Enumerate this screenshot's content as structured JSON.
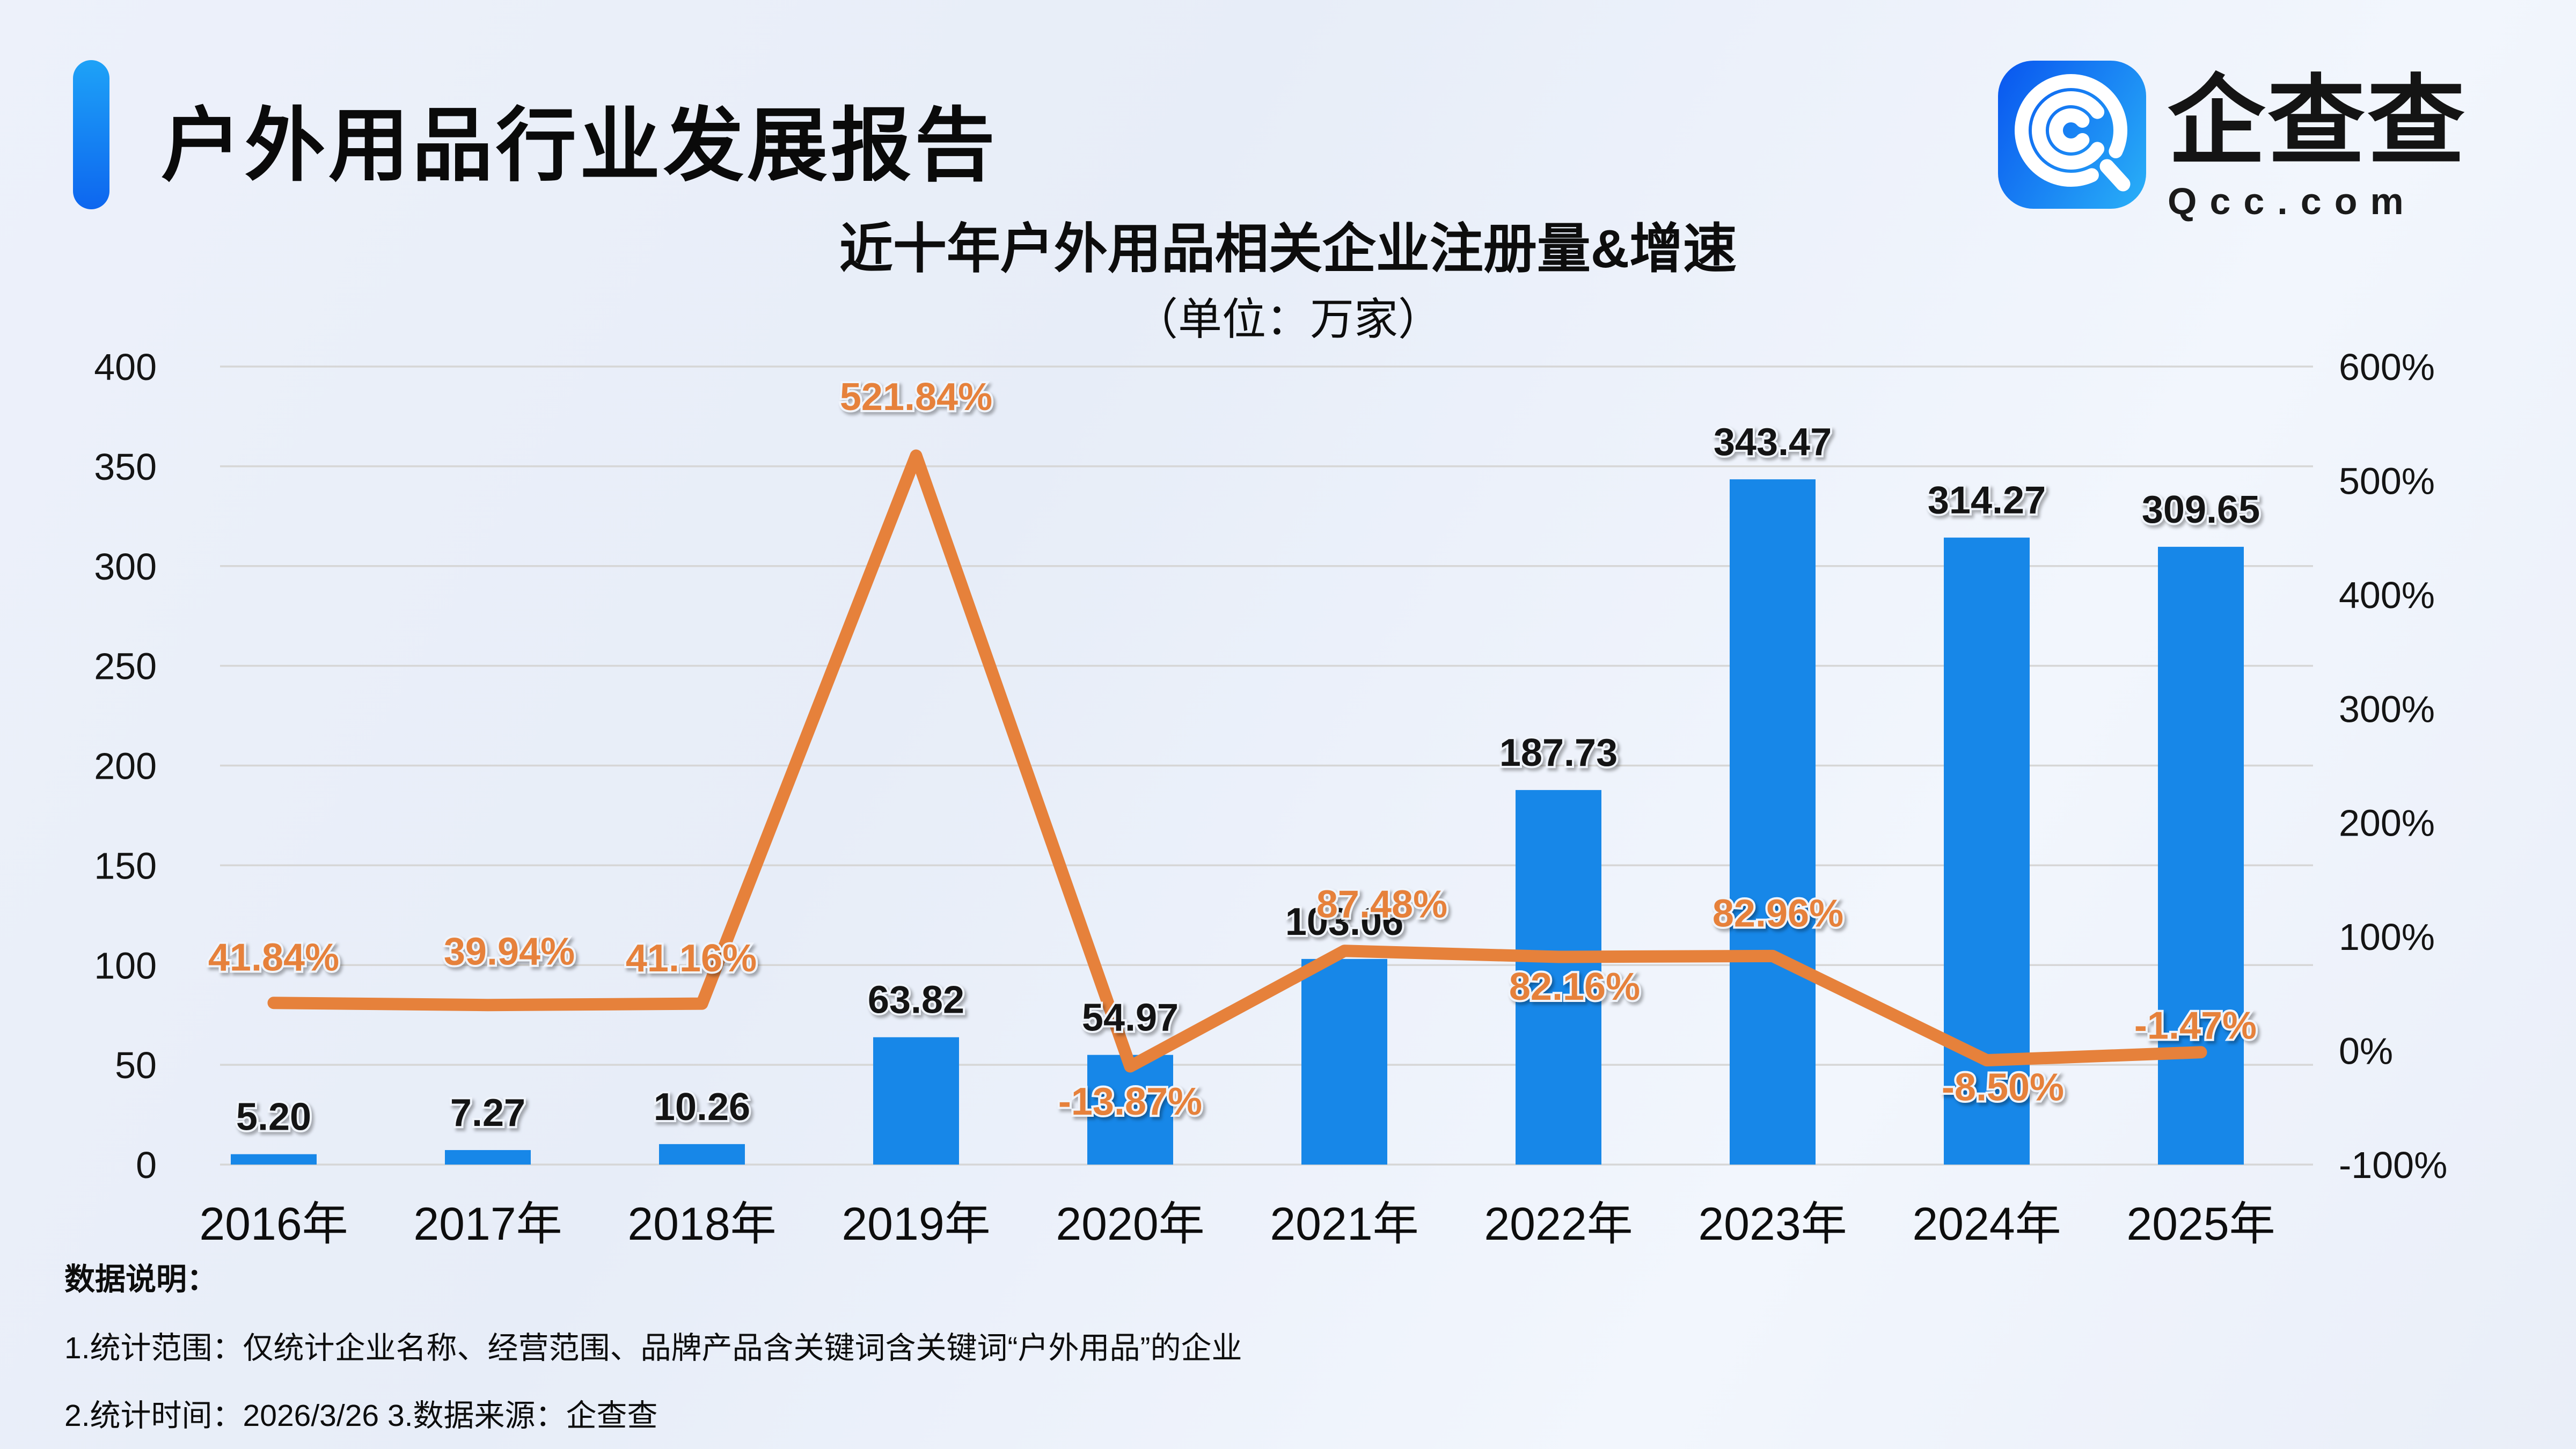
{
  "header": {
    "title": "户外用品行业发展报告",
    "accent_color": "#0d66ef",
    "logo": {
      "name": "企查查",
      "domain": "Qcc.com",
      "icon": "qcc-spiral-magnifier-icon",
      "icon_gradient_start": "#0b5cf0",
      "icon_gradient_end": "#27aaf7"
    }
  },
  "chart_data": {
    "type": "bar+line",
    "title": "近十年户外用品相关企业注册量&增速",
    "unit_label": "（单位：万家）",
    "grid": true,
    "legend_position": "none",
    "categories": [
      "2016年",
      "2017年",
      "2018年",
      "2019年",
      "2020年",
      "2021年",
      "2022年",
      "2023年",
      "2024年",
      "2025年"
    ],
    "series": [
      {
        "name": "注册量",
        "type": "bar",
        "axis": "left",
        "color": "#1787e8",
        "values": [
          5.2,
          7.27,
          10.26,
          63.82,
          54.97,
          103.06,
          187.73,
          343.47,
          314.27,
          309.65
        ],
        "labels": [
          "5.20",
          "7.27",
          "10.26",
          "63.82",
          "54.97",
          "103.06",
          "187.73",
          "343.47",
          "314.27",
          "309.65"
        ]
      },
      {
        "name": "增速",
        "type": "line",
        "axis": "right",
        "color": "#e6813b",
        "values": [
          41.84,
          39.94,
          41.16,
          521.84,
          -13.87,
          87.48,
          82.16,
          82.96,
          -8.5,
          -1.47
        ],
        "labels": [
          "41.84%",
          "39.94%",
          "41.16%",
          "521.84%",
          "-13.87%",
          "87.48%",
          "82.16%",
          "82.96%",
          "-8.50%",
          "-1.47%"
        ],
        "label_dx": [
          0,
          40,
          -20,
          0,
          0,
          70,
          30,
          10,
          30,
          -10
        ],
        "label_dy": [
          -60,
          -75,
          -60,
          -85,
          90,
          -62,
          80,
          -55,
          75,
          -25
        ]
      }
    ],
    "left_axis": {
      "min": 0,
      "max": 400,
      "ticks": [
        "400",
        "350",
        "300",
        "250",
        "200",
        "150",
        "100",
        "50",
        "0"
      ]
    },
    "right_axis": {
      "min": -100,
      "max": 600,
      "ticks": [
        "600%",
        "500%",
        "400%",
        "300%",
        "200%",
        "100%",
        "0%",
        "-100%"
      ]
    }
  },
  "notes": {
    "heading": "数据说明：",
    "line1": "1.统计范围：仅统计企业名称、经营范围、品牌产品含关键词含关键词“户外用品”的企业",
    "line2": "2.统计时间：2026/3/26  3.数据来源：企查查"
  }
}
